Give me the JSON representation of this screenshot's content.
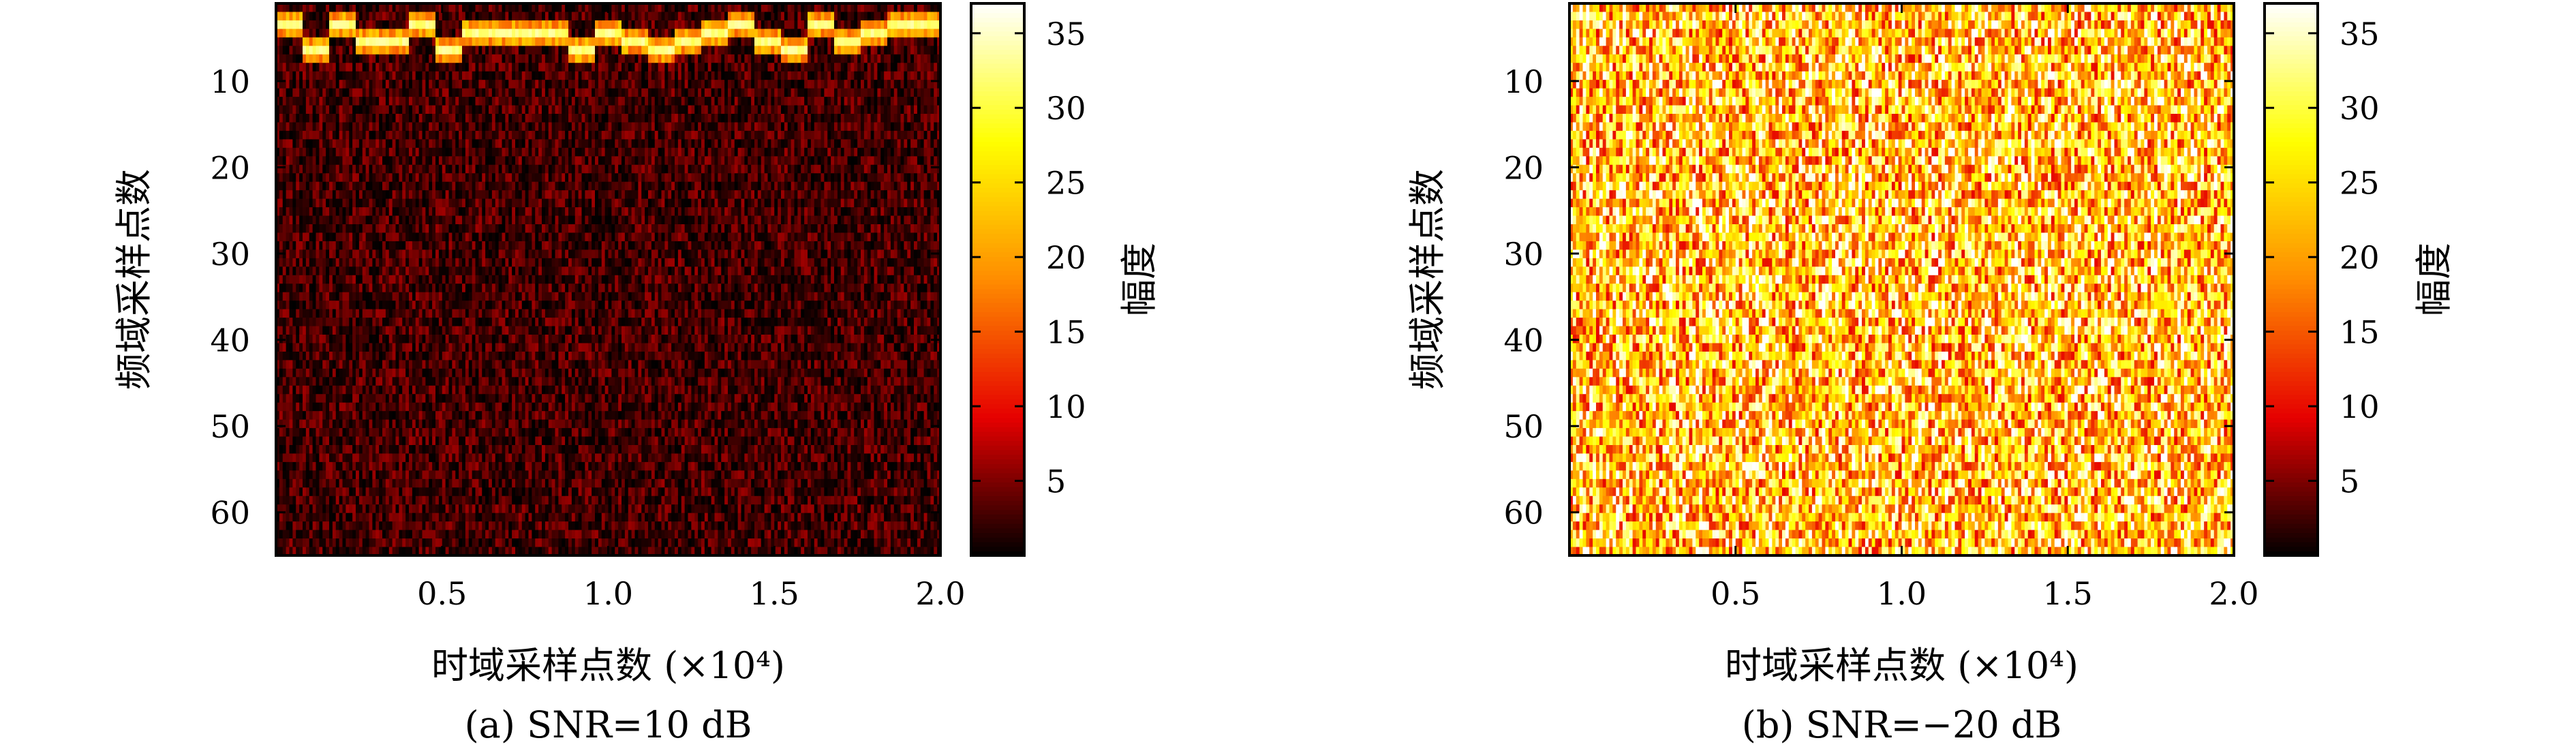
{
  "chart_data": [
    {
      "type": "heatmap",
      "caption": "(a) SNR=10 dB",
      "xlabel": "时域采样点数 (×10⁴)",
      "ylabel": "频域采样点数",
      "xlim": [
        0,
        2.0
      ],
      "ylim": [
        65,
        1
      ],
      "x_ticks": [
        0.5,
        1.0,
        1.5,
        2.0
      ],
      "x_tick_labels": [
        "0.5",
        "1.0",
        "1.5",
        "2.0"
      ],
      "y_ticks": [
        10,
        20,
        30,
        40,
        50,
        60
      ],
      "y_tick_labels": [
        "10",
        "20",
        "30",
        "40",
        "50",
        "60"
      ],
      "colorbar": {
        "label": "幅度",
        "range": [
          0,
          37
        ],
        "ticks": [
          5,
          10,
          15,
          20,
          25,
          30,
          35
        ],
        "tick_labels": [
          "5",
          "10",
          "15",
          "20",
          "25",
          "30",
          "35"
        ],
        "colormap": "hot",
        "colors": [
          "#000000",
          "#e60000",
          "#ff8c00",
          "#ffff00",
          "#ffffff"
        ]
      },
      "grid": false,
      "noise_level": 4,
      "hop_bin_rows": [
        3,
        6,
        3,
        5,
        5,
        3,
        6,
        4,
        4,
        4,
        4,
        6,
        4,
        5,
        6,
        5,
        4,
        3,
        5,
        6,
        3,
        5,
        4,
        3,
        3
      ],
      "hop_peak_amplitude": 34
    },
    {
      "type": "heatmap",
      "caption": "(b) SNR=−20 dB",
      "xlabel": "时域采样点数 (×10⁴)",
      "ylabel": "频域采样点数",
      "xlim": [
        0,
        2.0
      ],
      "ylim": [
        65,
        1
      ],
      "x_ticks": [
        0.5,
        1.0,
        1.5,
        2.0
      ],
      "x_tick_labels": [
        "0.5",
        "1.0",
        "1.5",
        "2.0"
      ],
      "y_ticks": [
        10,
        20,
        30,
        40,
        50,
        60
      ],
      "y_tick_labels": [
        "10",
        "20",
        "30",
        "40",
        "50",
        "60"
      ],
      "colorbar": {
        "label": "幅度",
        "range": [
          0,
          37
        ],
        "ticks": [
          5,
          10,
          15,
          20,
          25,
          30,
          35
        ],
        "tick_labels": [
          "5",
          "10",
          "15",
          "20",
          "25",
          "30",
          "35"
        ],
        "colormap": "hot",
        "colors": [
          "#000000",
          "#e60000",
          "#ff8c00",
          "#ffff00",
          "#ffffff"
        ]
      },
      "grid": false,
      "noise_level": 27,
      "hop_bin_rows": [],
      "hop_peak_amplitude": 0
    }
  ]
}
